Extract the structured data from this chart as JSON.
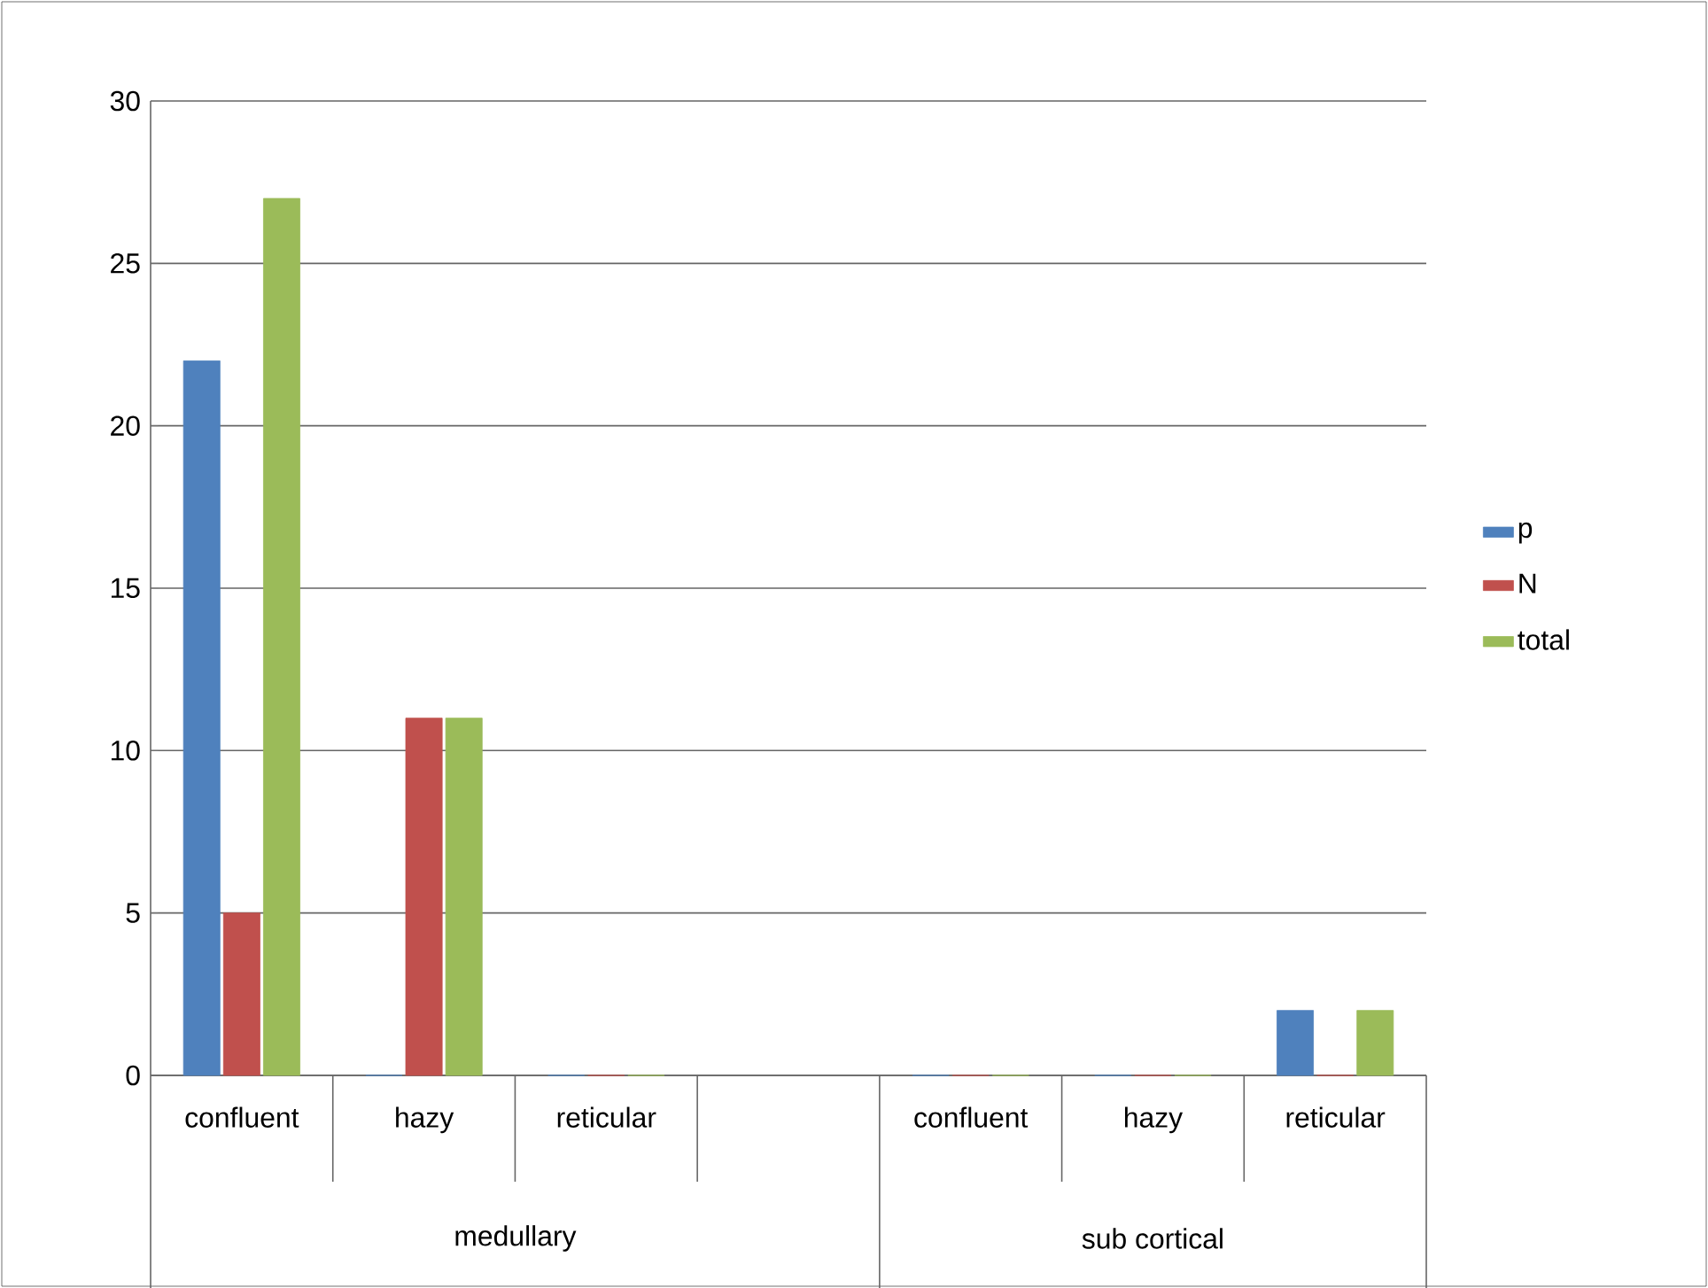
{
  "chart_data": {
    "type": "bar",
    "categories": [
      "confluent",
      "hazy",
      "reticular",
      null,
      "confluent",
      "hazy",
      "reticular"
    ],
    "series": [
      {
        "name": "p",
        "color": "#4f81bd",
        "values": [
          22,
          0,
          0,
          null,
          0,
          0,
          2
        ]
      },
      {
        "name": "N",
        "color": "#c0504d",
        "values": [
          5,
          11,
          0,
          null,
          0,
          0,
          0
        ]
      },
      {
        "name": "total",
        "color": "#9bbb59",
        "values": [
          27,
          11,
          0,
          null,
          0,
          0,
          2
        ]
      }
    ],
    "annotations": [
      "medullary",
      "sub cortical"
    ],
    "ylim": [
      0,
      30
    ],
    "yticks": [
      0,
      5,
      10,
      15,
      20,
      25,
      30
    ],
    "grid": "y",
    "legend": "right"
  }
}
